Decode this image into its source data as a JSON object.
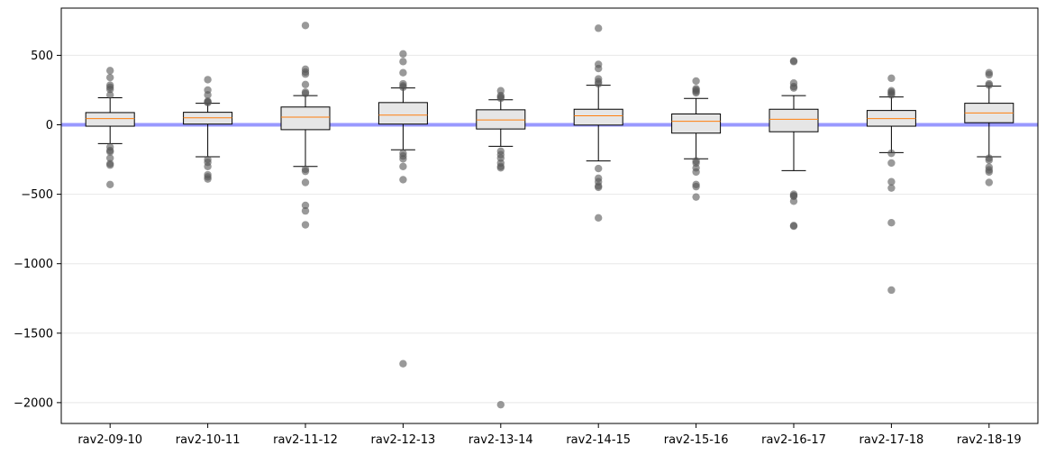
{
  "chart_data": {
    "type": "box",
    "title": "",
    "xlabel": "",
    "ylabel": "",
    "ylim": [
      -2150,
      840
    ],
    "yticks": [
      500,
      0,
      -500,
      -1000,
      -1500,
      -2000
    ],
    "ytick_labels": [
      "500",
      "0",
      "−500",
      "−1000",
      "−1500",
      "−2000"
    ],
    "grid": "horizontal",
    "reference_line": {
      "y": 0,
      "color": "#9999ff"
    },
    "box_fill": "#e6e6e6",
    "median_color": "#ff7f0e",
    "outlier_color": "#555555",
    "categories": [
      "rav2-09-10",
      "rav2-10-11",
      "rav2-11-12",
      "rav2-12-13",
      "rav2-13-14",
      "rav2-14-15",
      "rav2-15-16",
      "rav2-16-17",
      "rav2-17-18",
      "rav2-18-19"
    ],
    "boxes": [
      {
        "q1": -10,
        "median": 45,
        "q3": 88,
        "whisker_low": -135,
        "whisker_high": 195,
        "outliers": [
          390,
          340,
          285,
          270,
          255,
          215,
          -160,
          -185,
          -195,
          -240,
          -280,
          -290,
          -430
        ]
      },
      {
        "q1": 5,
        "median": 50,
        "q3": 90,
        "whisker_low": -230,
        "whisker_high": 155,
        "outliers": [
          325,
          250,
          215,
          170,
          165,
          160,
          -250,
          -270,
          -300,
          -360,
          -375,
          -390
        ]
      },
      {
        "q1": -35,
        "median": 55,
        "q3": 128,
        "whisker_low": -300,
        "whisker_high": 210,
        "outliers": [
          715,
          400,
          380,
          365,
          290,
          235,
          225,
          -320,
          -335,
          -415,
          -580,
          -620,
          -720
        ]
      },
      {
        "q1": 5,
        "median": 70,
        "q3": 160,
        "whisker_low": -180,
        "whisker_high": 265,
        "outliers": [
          510,
          455,
          375,
          295,
          280,
          270,
          -205,
          -225,
          -245,
          -300,
          -395,
          -1720
        ]
      },
      {
        "q1": -30,
        "median": 35,
        "q3": 108,
        "whisker_low": -155,
        "whisker_high": 180,
        "outliers": [
          245,
          210,
          200,
          190,
          -190,
          -215,
          -240,
          -275,
          -300,
          -310,
          -2015
        ]
      },
      {
        "q1": -2,
        "median": 65,
        "q3": 112,
        "whisker_low": -260,
        "whisker_high": 285,
        "outliers": [
          695,
          435,
          405,
          330,
          310,
          295,
          -315,
          -385,
          -410,
          -440,
          -450,
          -670
        ]
      },
      {
        "q1": -60,
        "median": 25,
        "q3": 78,
        "whisker_low": -245,
        "whisker_high": 190,
        "outliers": [
          315,
          260,
          250,
          240,
          230,
          -260,
          -275,
          -310,
          -340,
          -430,
          -445,
          -520
        ]
      },
      {
        "q1": -50,
        "median": 40,
        "q3": 112,
        "whisker_low": -330,
        "whisker_high": 210,
        "outliers": [
          460,
          455,
          300,
          275,
          265,
          -500,
          -510,
          -515,
          -550,
          -725,
          -730
        ]
      },
      {
        "q1": -10,
        "median": 45,
        "q3": 103,
        "whisker_low": -200,
        "whisker_high": 200,
        "outliers": [
          335,
          245,
          235,
          225,
          215,
          -205,
          -275,
          -410,
          -455,
          -705,
          -1190
        ]
      },
      {
        "q1": 15,
        "median": 85,
        "q3": 155,
        "whisker_low": -230,
        "whisker_high": 278,
        "outliers": [
          375,
          360,
          295,
          285,
          -240,
          -255,
          -305,
          -325,
          -340,
          -415
        ]
      }
    ]
  }
}
